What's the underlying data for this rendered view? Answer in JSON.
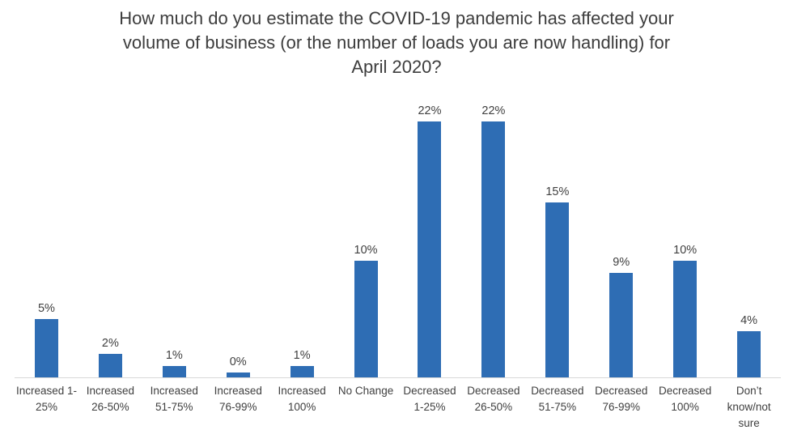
{
  "chart_data": {
    "type": "bar",
    "title": "How much do you estimate the COVID-19 pandemic has affected your\nvolume of business (or the number of loads you are now handling) for\nApril 2020?",
    "categories": [
      "Increased 1-\n25%",
      "Increased\n26-50%",
      "Increased\n51-75%",
      "Increased\n76-99%",
      "Increased\n100%",
      "No Change",
      "Decreased\n1-25%",
      "Decreased\n26-50%",
      "Decreased\n51-75%",
      "Decreased\n76-99%",
      "Decreased\n100%",
      "Don’t\nknow/not\nsure"
    ],
    "values": [
      5,
      2,
      1,
      0,
      1,
      10,
      22,
      22,
      15,
      9,
      10,
      4
    ],
    "data_labels": [
      "5%",
      "2%",
      "1%",
      "0%",
      "1%",
      "10%",
      "22%",
      "22%",
      "15%",
      "9%",
      "10%",
      "4%"
    ],
    "xlabel": "",
    "ylabel": "",
    "ylim": [
      0,
      25.6
    ],
    "grid": false,
    "legend_position": "none",
    "bar_color": "#2e6db4",
    "axis_line_color": "#d8d8d8",
    "text_color": "#404040"
  }
}
